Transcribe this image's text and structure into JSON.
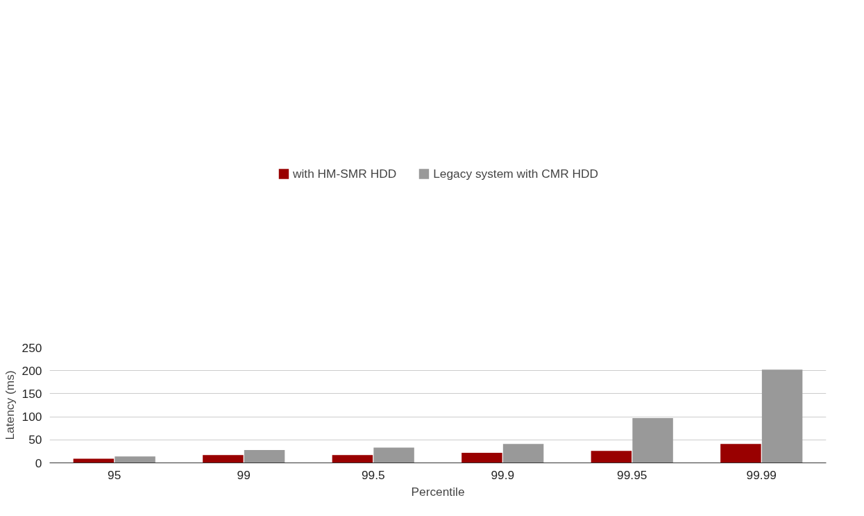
{
  "chart_data": {
    "type": "bar",
    "xlabel": "Percentile",
    "ylabel": "Latency (ms)",
    "categories": [
      "95",
      "99",
      "99.5",
      "99.9",
      "99.95",
      "99.99"
    ],
    "series": [
      {
        "name": "with HM-SMR HDD",
        "color": "#990000",
        "values": [
          9,
          17,
          17,
          22,
          26,
          41
        ]
      },
      {
        "name": "Legacy system with CMR HDD",
        "color": "#999999",
        "values": [
          14,
          28,
          33,
          41,
          97,
          202
        ]
      }
    ],
    "ylim": [
      0,
      250
    ],
    "yticks": [
      0,
      50,
      100,
      150,
      200,
      250
    ],
    "grid": "y",
    "legend": "top"
  }
}
